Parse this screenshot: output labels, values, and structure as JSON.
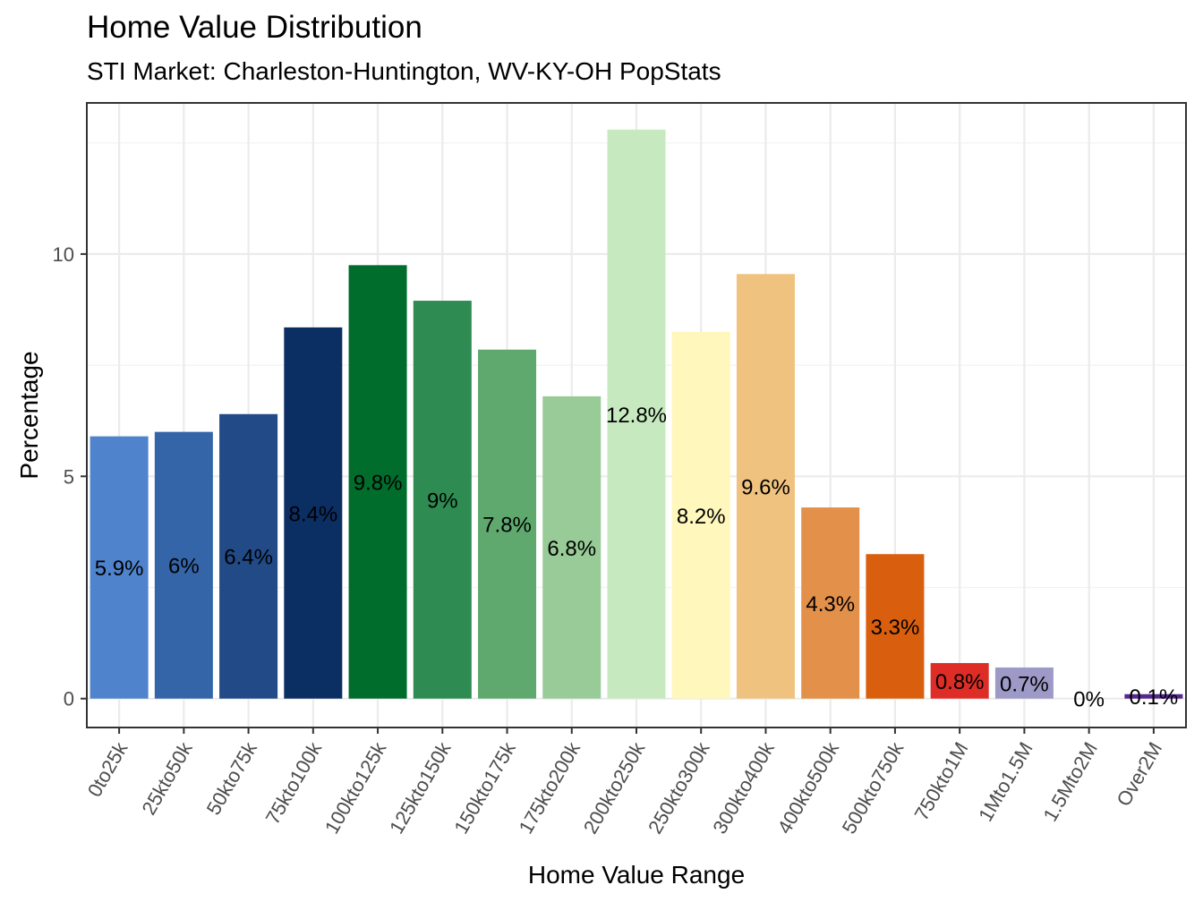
{
  "chart_data": {
    "type": "bar",
    "title": "Home Value Distribution",
    "subtitle": "STI Market: Charleston-Huntington, WV-KY-OH PopStats",
    "xlabel": "Home Value Range",
    "ylabel": "Percentage",
    "categories": [
      "0to25k",
      "25kto50k",
      "50kto75k",
      "75kto100k",
      "100kto125k",
      "125kto150k",
      "150kto175k",
      "175kto200k",
      "200kto250k",
      "250kto300k",
      "300kto400k",
      "400kto500k",
      "500kto750k",
      "750kto1M",
      "1Mto1.5M",
      "1.5Mto2M",
      "Over2M"
    ],
    "values": [
      5.9,
      6.0,
      6.4,
      8.35,
      9.75,
      8.95,
      7.85,
      6.8,
      12.8,
      8.25,
      9.55,
      4.3,
      3.25,
      0.8,
      0.7,
      0.0,
      0.1
    ],
    "data_labels": [
      "5.9%",
      "6%",
      "6.4%",
      "8.4%",
      "9.8%",
      "9%",
      "7.8%",
      "6.8%",
      "12.8%",
      "8.2%",
      "9.6%",
      "4.3%",
      "3.3%",
      "0.8%",
      "0.7%",
      "0%",
      "0.1%"
    ],
    "colors": [
      "#4f83cc",
      "#3465a8",
      "#214a87",
      "#0b2e63",
      "#006d2c",
      "#2e8b52",
      "#5fa96f",
      "#98cb97",
      "#c7e9c0",
      "#fff7bc",
      "#f0c27f",
      "#e3904a",
      "#d95f0e",
      "#de2d26",
      "#9e9ac8",
      "#807dba",
      "#54278f"
    ],
    "yticks": [
      0,
      5,
      10
    ],
    "ylim": [
      -0.65,
      13.4
    ],
    "grid": true,
    "legend": "none"
  }
}
